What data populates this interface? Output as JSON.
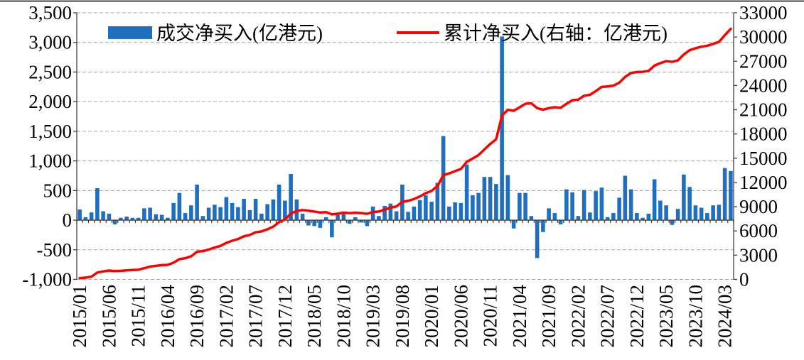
{
  "chart_data": {
    "type": "bar",
    "x_tick_labels": [
      "2015/01",
      "2015/06",
      "2015/11",
      "2016/04",
      "2016/09",
      "2017/02",
      "2017/07",
      "2017/12",
      "2018/05",
      "2018/10",
      "2019/03",
      "2019/08",
      "2020/01",
      "2020/06",
      "2020/11",
      "2021/04",
      "2021/09",
      "2022/02",
      "2022/07",
      "2022/12",
      "2023/05",
      "2023/10",
      "2024/03"
    ],
    "x_tick_every": 5,
    "x_start_year": 2015,
    "x_start_month": 1,
    "y_left_tick_labels": [
      "-1,000",
      "-500",
      "0",
      "500",
      "1,000",
      "1,500",
      "2,000",
      "2,500",
      "3,000",
      "3,500"
    ],
    "y_left_step": 500,
    "ylim_left": [
      -1000,
      3500
    ],
    "y_right_tick_labels": [
      "0",
      "3000",
      "6000",
      "9000",
      "12000",
      "15000",
      "18000",
      "21000",
      "24000",
      "27000",
      "30000",
      "33000"
    ],
    "y_right_step": 3000,
    "ylim_right": [
      0,
      33000
    ],
    "grid": true,
    "series": [
      {
        "name": "成交净买入(亿港元)",
        "as_line": false,
        "right_axis": false,
        "values": [
          180,
          50,
          130,
          540,
          150,
          110,
          -70,
          40,
          60,
          40,
          40,
          200,
          210,
          100,
          90,
          40,
          290,
          460,
          120,
          250,
          600,
          70,
          210,
          260,
          220,
          390,
          290,
          220,
          360,
          170,
          360,
          110,
          270,
          350,
          600,
          330,
          780,
          350,
          110,
          -90,
          -100,
          -130,
          50,
          -290,
          90,
          130,
          -60,
          50,
          -40,
          -100,
          230,
          70,
          240,
          280,
          150,
          600,
          140,
          230,
          340,
          420,
          310,
          630,
          1420,
          230,
          300,
          290,
          940,
          420,
          460,
          730,
          730,
          610,
          3100,
          760,
          -140,
          460,
          460,
          70,
          -640,
          -200,
          200,
          120,
          -70,
          520,
          470,
          70,
          510,
          130,
          490,
          550,
          50,
          120,
          380,
          750,
          520,
          120,
          40,
          110,
          690,
          330,
          250,
          -80,
          190,
          770,
          560,
          250,
          210,
          120,
          250,
          260,
          880,
          830
        ]
      },
      {
        "name": "累计净买入(右轴：亿港元)",
        "as_line": true,
        "right_axis": true,
        "values": [
          170,
          220,
          340,
          850,
          990,
          1100,
          1030,
          1070,
          1120,
          1160,
          1200,
          1390,
          1590,
          1680,
          1770,
          1800,
          2080,
          2510,
          2630,
          2860,
          3430,
          3500,
          3700,
          3940,
          4150,
          4520,
          4790,
          5000,
          5340,
          5500,
          5840,
          5940,
          6200,
          6530,
          7100,
          7410,
          8150,
          8480,
          8580,
          8500,
          8400,
          8280,
          8330,
          8050,
          8140,
          8260,
          8200,
          8250,
          8210,
          8120,
          8330,
          8400,
          8630,
          8890,
          9030,
          9600,
          9730,
          9950,
          10270,
          10670,
          10960,
          11560,
          12900,
          13120,
          13400,
          13670,
          14560,
          14960,
          15390,
          16080,
          16770,
          17350,
          20280,
          21000,
          20870,
          21300,
          21740,
          21800,
          21200,
          21010,
          21200,
          21310,
          21240,
          21740,
          22180,
          22250,
          22730,
          22850,
          23310,
          23830,
          23880,
          23990,
          24350,
          25060,
          25550,
          25670,
          25700,
          25810,
          26460,
          26770,
          27010,
          26930,
          27110,
          27840,
          28370,
          28610,
          28800,
          28920,
          29150,
          29400,
          30230,
          31020
        ]
      }
    ],
    "colors": {
      "bar": "#1f6fbe",
      "line": "#ff0000",
      "grid": "#a3a3a3",
      "axis": "#404040",
      "frame": "#000000"
    }
  }
}
